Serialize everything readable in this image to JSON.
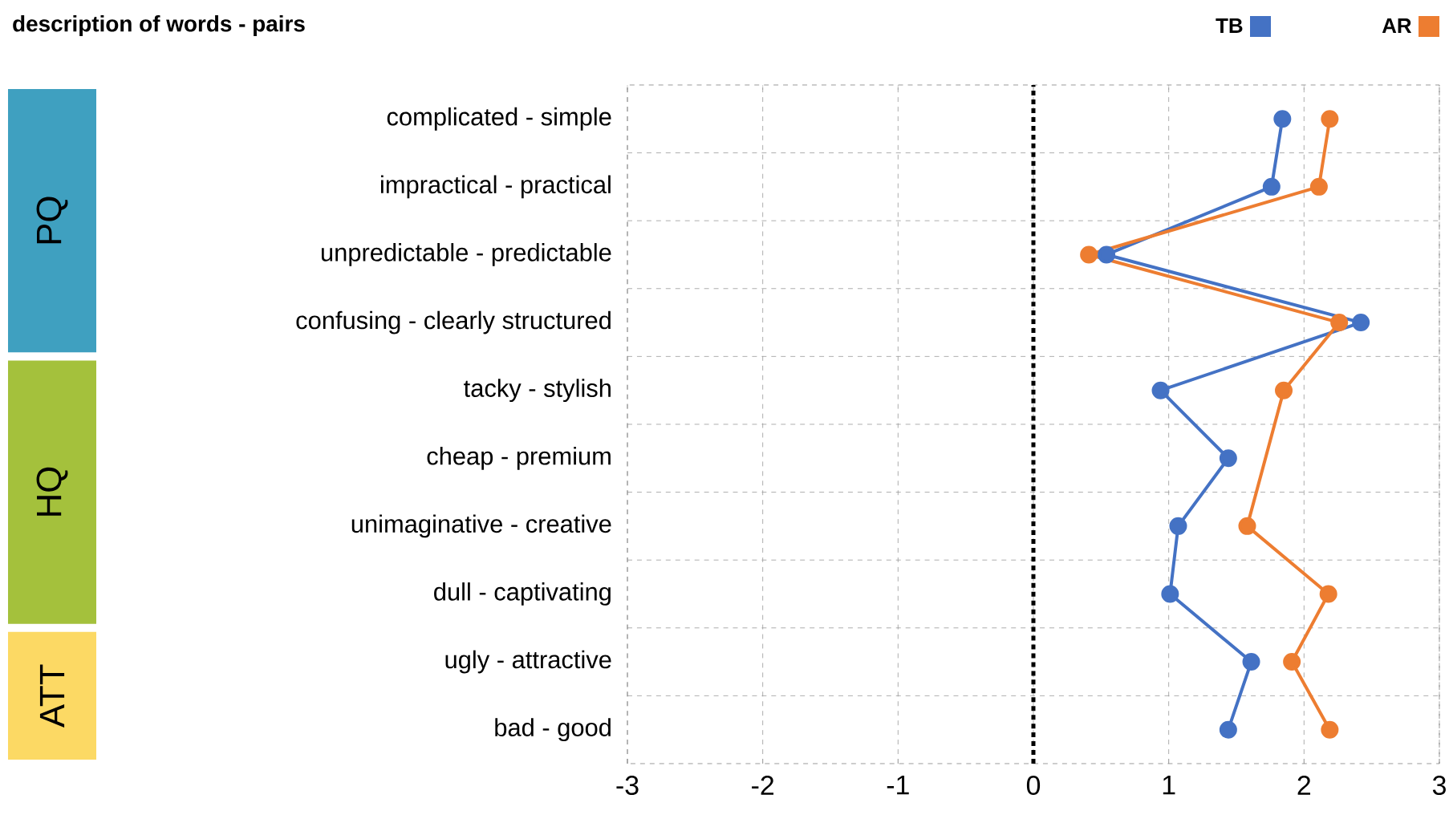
{
  "chart_data": {
    "type": "line",
    "title": "description of words - pairs",
    "categories": [
      "complicated - simple",
      "impractical - practical",
      "unpredictable - predictable",
      "confusing - clearly structured",
      "tacky - stylish",
      "cheap - premium",
      "unimaginative - creative",
      "dull - captivating",
      "ugly - attractive",
      "bad - good"
    ],
    "orientation": "horizontal",
    "series": [
      {
        "name": "TB",
        "color": "#4472c4",
        "values": [
          1.84,
          1.76,
          0.54,
          2.42,
          0.94,
          1.44,
          1.07,
          1.01,
          1.61,
          1.44
        ]
      },
      {
        "name": "AR",
        "color": "#ed7d31",
        "values": [
          2.19,
          2.11,
          0.41,
          2.26,
          1.85,
          null,
          1.58,
          2.18,
          1.91,
          2.19
        ]
      }
    ],
    "xlim": [
      -3,
      3
    ],
    "xticks": [
      -3,
      -2,
      -1,
      0,
      1,
      2,
      3
    ],
    "grid": true,
    "legend": "top right",
    "marker": "circle",
    "line_style": "solid",
    "ref_lines": [
      {
        "axis": "x",
        "value": 0,
        "color": "#000000",
        "line_style": "dotted"
      }
    ],
    "annotations": [
      "PQ",
      "HQ",
      "ATT"
    ]
  }
}
